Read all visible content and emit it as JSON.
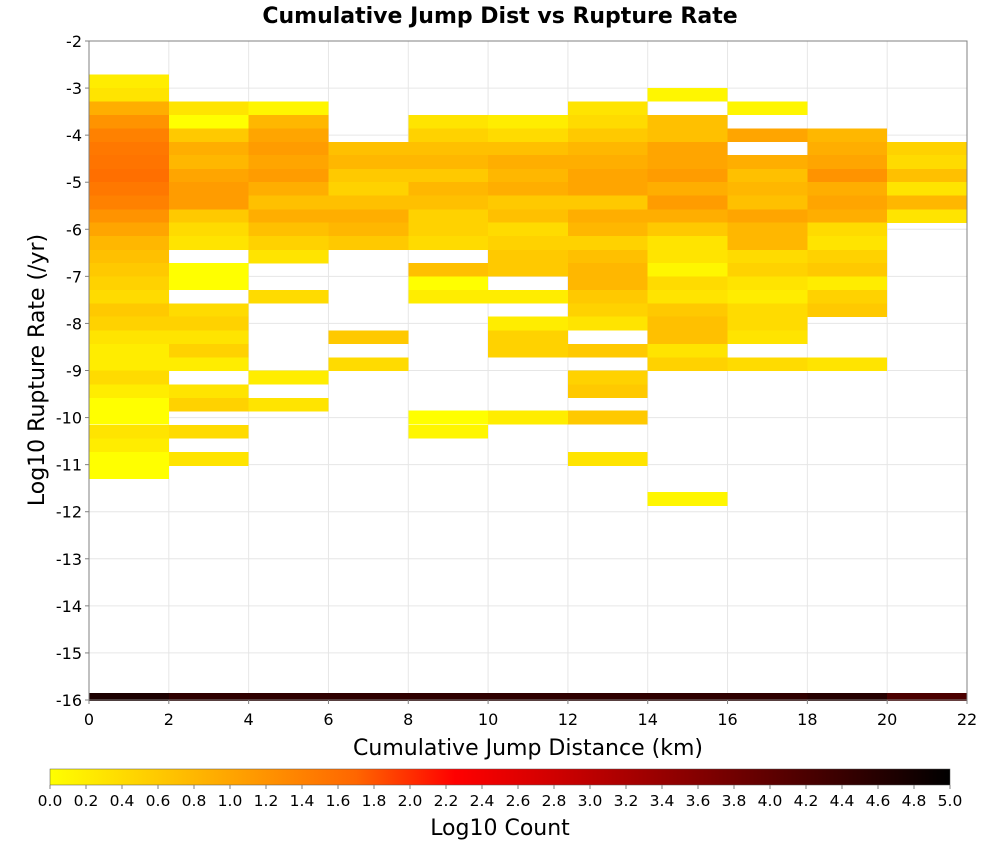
{
  "chart_data": {
    "type": "heatmap",
    "title": "Cumulative Jump Dist vs Rupture Rate",
    "xlabel": "Cumulative Jump Distance (km)",
    "ylabel": "Log10 Rupture Rate (/yr)",
    "colorbar_label": "Log10 Count",
    "xlim": [
      0,
      22
    ],
    "ylim": [
      -16,
      -2
    ],
    "x_bin_width": 2,
    "y_bin_width": 0.29,
    "x_ticks": [
      "0",
      "2",
      "4",
      "6",
      "8",
      "10",
      "12",
      "14",
      "16",
      "18",
      "20",
      "22"
    ],
    "y_ticks": [
      "-2",
      "-3",
      "-4",
      "-5",
      "-6",
      "-7",
      "-8",
      "-9",
      "-10",
      "-11",
      "-12",
      "-13",
      "-14",
      "-15",
      "-16"
    ],
    "colorbar_ticks": [
      "0.0",
      "0.2",
      "0.4",
      "0.6",
      "0.8",
      "1.0",
      "1.2",
      "1.4",
      "1.6",
      "1.8",
      "2.0",
      "2.2",
      "2.4",
      "2.6",
      "2.8",
      "3.0",
      "3.2",
      "3.4",
      "3.6",
      "3.8",
      "4.0",
      "4.2",
      "4.4",
      "4.6",
      "4.8",
      "5.0"
    ],
    "colorbar_range": [
      0,
      5
    ],
    "colorscale": [
      "#ffff00",
      "#ff6600",
      "#ff0000",
      "#000000"
    ],
    "grid": true,
    "bins": [
      [
        1,
        -2.86,
        0.2
      ],
      [
        1,
        -3.14,
        0.3
      ],
      [
        1,
        -3.43,
        0.9
      ],
      [
        1,
        -3.72,
        1.2
      ],
      [
        1,
        -4.0,
        1.4
      ],
      [
        1,
        -4.29,
        1.5
      ],
      [
        1,
        -4.57,
        1.55
      ],
      [
        1,
        -4.86,
        1.6
      ],
      [
        1,
        -5.14,
        1.5
      ],
      [
        1,
        -5.43,
        1.4
      ],
      [
        1,
        -5.72,
        1.2
      ],
      [
        1,
        -6.0,
        1.0
      ],
      [
        1,
        -6.29,
        0.8
      ],
      [
        1,
        -6.58,
        0.7
      ],
      [
        1,
        -6.86,
        0.6
      ],
      [
        1,
        -7.15,
        0.5
      ],
      [
        1,
        -7.43,
        0.4
      ],
      [
        1,
        -7.72,
        0.6
      ],
      [
        1,
        -8.0,
        0.5
      ],
      [
        1,
        -8.29,
        0.3
      ],
      [
        1,
        -8.58,
        0.2
      ],
      [
        1,
        -8.87,
        0.2
      ],
      [
        1,
        -9.15,
        0.4
      ],
      [
        1,
        -9.44,
        0.2
      ],
      [
        1,
        -9.73,
        0.0
      ],
      [
        1,
        -10.0,
        0.0
      ],
      [
        1,
        -10.3,
        0.3
      ],
      [
        1,
        -10.59,
        0.2
      ],
      [
        1,
        -10.88,
        0.0
      ],
      [
        1,
        -11.16,
        0.0
      ],
      [
        3,
        -3.43,
        0.3
      ],
      [
        3,
        -3.72,
        0.0
      ],
      [
        3,
        -4.0,
        0.6
      ],
      [
        3,
        -4.29,
        0.9
      ],
      [
        3,
        -4.57,
        0.8
      ],
      [
        3,
        -4.86,
        1.0
      ],
      [
        3,
        -5.14,
        1.1
      ],
      [
        3,
        -5.43,
        1.1
      ],
      [
        3,
        -5.72,
        0.6
      ],
      [
        3,
        -6.0,
        0.4
      ],
      [
        3,
        -6.29,
        0.3
      ],
      [
        3,
        -6.86,
        0.0
      ],
      [
        3,
        -7.15,
        0.0
      ],
      [
        3,
        -7.72,
        0.4
      ],
      [
        3,
        -8.0,
        0.5
      ],
      [
        3,
        -8.29,
        0.3
      ],
      [
        3,
        -8.58,
        0.5
      ],
      [
        3,
        -8.87,
        0.2
      ],
      [
        3,
        -9.44,
        0.3
      ],
      [
        3,
        -9.73,
        0.5
      ],
      [
        3,
        -10.3,
        0.4
      ],
      [
        3,
        -10.88,
        0.3
      ],
      [
        5,
        -3.43,
        0.1
      ],
      [
        5,
        -3.72,
        0.8
      ],
      [
        5,
        -4.0,
        1.0
      ],
      [
        5,
        -4.29,
        1.1
      ],
      [
        5,
        -4.57,
        1.0
      ],
      [
        5,
        -4.86,
        1.1
      ],
      [
        5,
        -5.14,
        0.9
      ],
      [
        5,
        -5.43,
        0.7
      ],
      [
        5,
        -5.72,
        0.9
      ],
      [
        5,
        -6.0,
        0.7
      ],
      [
        5,
        -6.29,
        0.5
      ],
      [
        5,
        -6.58,
        0.3
      ],
      [
        5,
        -7.43,
        0.4
      ],
      [
        5,
        -9.15,
        0.2
      ],
      [
        5,
        -9.73,
        0.3
      ],
      [
        7,
        -4.29,
        0.7
      ],
      [
        7,
        -4.57,
        0.8
      ],
      [
        7,
        -4.86,
        0.6
      ],
      [
        7,
        -5.14,
        0.5
      ],
      [
        7,
        -5.43,
        0.7
      ],
      [
        7,
        -5.72,
        0.9
      ],
      [
        7,
        -6.0,
        0.8
      ],
      [
        7,
        -6.29,
        0.6
      ],
      [
        7,
        -8.29,
        0.6
      ],
      [
        7,
        -8.87,
        0.4
      ],
      [
        9,
        -3.72,
        0.3
      ],
      [
        9,
        -4.0,
        0.5
      ],
      [
        9,
        -4.29,
        0.7
      ],
      [
        9,
        -4.57,
        0.8
      ],
      [
        9,
        -4.86,
        0.6
      ],
      [
        9,
        -5.14,
        0.8
      ],
      [
        9,
        -5.43,
        0.7
      ],
      [
        9,
        -5.72,
        0.5
      ],
      [
        9,
        -6.0,
        0.5
      ],
      [
        9,
        -6.29,
        0.4
      ],
      [
        9,
        -6.86,
        0.7
      ],
      [
        9,
        -7.15,
        0.0
      ],
      [
        9,
        -7.43,
        0.2
      ],
      [
        9,
        -10.0,
        0.0
      ],
      [
        9,
        -10.3,
        0.1
      ],
      [
        11,
        -3.72,
        0.2
      ],
      [
        11,
        -4.0,
        0.4
      ],
      [
        11,
        -4.29,
        0.7
      ],
      [
        11,
        -4.57,
        0.9
      ],
      [
        11,
        -4.86,
        0.8
      ],
      [
        11,
        -5.14,
        0.9
      ],
      [
        11,
        -5.43,
        0.6
      ],
      [
        11,
        -5.72,
        0.7
      ],
      [
        11,
        -6.0,
        0.4
      ],
      [
        11,
        -6.29,
        0.5
      ],
      [
        11,
        -6.58,
        0.6
      ],
      [
        11,
        -6.86,
        0.6
      ],
      [
        11,
        -7.43,
        0.2
      ],
      [
        11,
        -8.0,
        0.2
      ],
      [
        11,
        -8.29,
        0.5
      ],
      [
        11,
        -8.58,
        0.5
      ],
      [
        11,
        -10.0,
        0.2
      ],
      [
        13,
        -3.43,
        0.3
      ],
      [
        13,
        -3.72,
        0.4
      ],
      [
        13,
        -4.0,
        0.6
      ],
      [
        13,
        -4.29,
        0.8
      ],
      [
        13,
        -4.57,
        0.9
      ],
      [
        13,
        -4.86,
        1.0
      ],
      [
        13,
        -5.14,
        1.0
      ],
      [
        13,
        -5.43,
        0.6
      ],
      [
        13,
        -5.72,
        0.9
      ],
      [
        13,
        -6.0,
        0.8
      ],
      [
        13,
        -6.29,
        0.5
      ],
      [
        13,
        -6.58,
        0.7
      ],
      [
        13,
        -6.86,
        0.8
      ],
      [
        13,
        -7.15,
        0.8
      ],
      [
        13,
        -7.43,
        0.6
      ],
      [
        13,
        -7.72,
        0.5
      ],
      [
        13,
        -8.0,
        0.3
      ],
      [
        13,
        -8.58,
        0.6
      ],
      [
        13,
        -9.15,
        0.5
      ],
      [
        13,
        -9.44,
        0.6
      ],
      [
        13,
        -10.0,
        0.6
      ],
      [
        13,
        -10.88,
        0.3
      ],
      [
        15,
        -3.14,
        0.1
      ],
      [
        15,
        -3.72,
        0.7
      ],
      [
        15,
        -4.0,
        0.7
      ],
      [
        15,
        -4.29,
        1.0
      ],
      [
        15,
        -4.57,
        1.0
      ],
      [
        15,
        -4.86,
        1.1
      ],
      [
        15,
        -5.14,
        0.9
      ],
      [
        15,
        -5.43,
        1.1
      ],
      [
        15,
        -5.72,
        0.9
      ],
      [
        15,
        -6.0,
        0.6
      ],
      [
        15,
        -6.29,
        0.3
      ],
      [
        15,
        -6.58,
        0.3
      ],
      [
        15,
        -6.86,
        0.1
      ],
      [
        15,
        -7.15,
        0.4
      ],
      [
        15,
        -7.43,
        0.3
      ],
      [
        15,
        -7.72,
        0.6
      ],
      [
        15,
        -8.0,
        0.7
      ],
      [
        15,
        -8.29,
        0.7
      ],
      [
        15,
        -8.58,
        0.3
      ],
      [
        15,
        -8.87,
        0.5
      ],
      [
        15,
        -11.73,
        0.1
      ],
      [
        17,
        -3.43,
        0.1
      ],
      [
        17,
        -4.0,
        1.0
      ],
      [
        17,
        -4.57,
        0.9
      ],
      [
        17,
        -4.86,
        0.7
      ],
      [
        17,
        -5.14,
        0.8
      ],
      [
        17,
        -5.43,
        0.7
      ],
      [
        17,
        -5.72,
        1.0
      ],
      [
        17,
        -6.0,
        0.8
      ],
      [
        17,
        -6.29,
        0.8
      ],
      [
        17,
        -6.58,
        0.4
      ],
      [
        17,
        -6.86,
        0.5
      ],
      [
        17,
        -7.15,
        0.3
      ],
      [
        17,
        -7.43,
        0.2
      ],
      [
        17,
        -7.72,
        0.4
      ],
      [
        17,
        -8.0,
        0.4
      ],
      [
        17,
        -8.29,
        0.3
      ],
      [
        17,
        -8.87,
        0.4
      ],
      [
        19,
        -4.0,
        0.8
      ],
      [
        19,
        -4.29,
        0.9
      ],
      [
        19,
        -4.57,
        1.0
      ],
      [
        19,
        -4.86,
        1.2
      ],
      [
        19,
        -5.14,
        0.9
      ],
      [
        19,
        -5.43,
        1.0
      ],
      [
        19,
        -5.72,
        0.9
      ],
      [
        19,
        -6.0,
        0.4
      ],
      [
        19,
        -6.29,
        0.3
      ],
      [
        19,
        -6.58,
        0.5
      ],
      [
        19,
        -6.86,
        0.6
      ],
      [
        19,
        -7.15,
        0.2
      ],
      [
        19,
        -7.43,
        0.5
      ],
      [
        19,
        -7.72,
        0.6
      ],
      [
        19,
        -8.87,
        0.3
      ],
      [
        21,
        -4.29,
        0.5
      ],
      [
        21,
        -4.57,
        0.4
      ],
      [
        21,
        -4.86,
        0.7
      ],
      [
        21,
        -5.14,
        0.3
      ],
      [
        21,
        -5.43,
        0.8
      ],
      [
        21,
        -5.72,
        0.3
      ]
    ],
    "bottom_row": {
      "y": -16,
      "values": [
        4.7,
        4.5,
        4.5,
        4.5,
        4.5,
        4.5,
        4.5,
        4.5,
        4.5,
        4.6,
        4.2
      ]
    }
  }
}
